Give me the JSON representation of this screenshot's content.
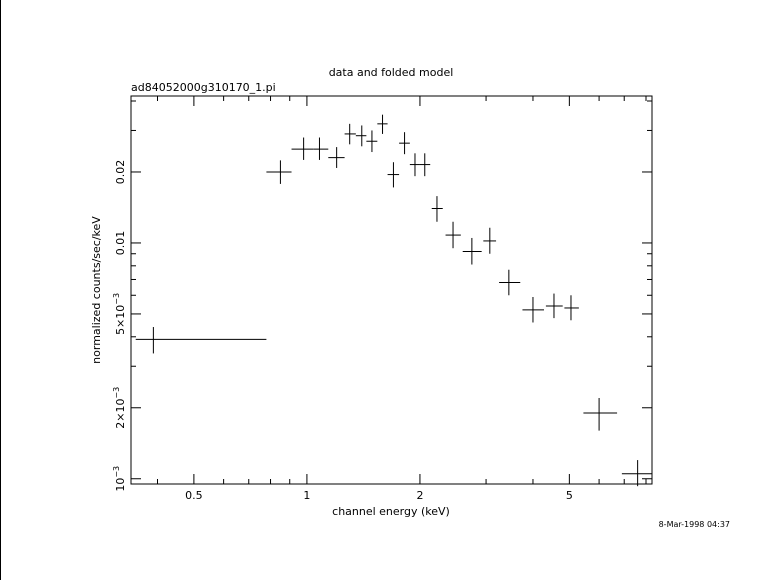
{
  "chart_data": {
    "type": "scatter",
    "title": "data and folded model",
    "subtitle": "ad84052000g310170_1.pi",
    "xlabel": "channel energy (keV)",
    "ylabel": "normalized counts/sec/keV",
    "timestamp": "8-Mar-1998 04:37",
    "x_scale": "log",
    "y_scale": "log",
    "xlim": [
      0.34,
      8.3
    ],
    "ylim": [
      0.00095,
      0.042
    ],
    "x_ticks": [
      {
        "value": 0.5,
        "label": "0.5"
      },
      {
        "value": 1,
        "label": "1"
      },
      {
        "value": 2,
        "label": "2"
      },
      {
        "value": 5,
        "label": "5"
      }
    ],
    "y_ticks": [
      {
        "value": 0.001,
        "label_base": "10",
        "label_sup": "−3"
      },
      {
        "value": 0.002,
        "label_base": "2×10",
        "label_sup": "−3"
      },
      {
        "value": 0.005,
        "label_base": "5×10",
        "label_sup": "−3"
      },
      {
        "value": 0.01,
        "label_base": "0.01",
        "label_sup": ""
      },
      {
        "value": 0.02,
        "label_base": "0.02",
        "label_sup": ""
      }
    ],
    "points": [
      {
        "x": 0.39,
        "xlo": 0.35,
        "xhi": 0.78,
        "y": 0.0039,
        "ylo": 0.0034,
        "yhi": 0.0044
      },
      {
        "x": 0.85,
        "xlo": 0.78,
        "xhi": 0.91,
        "y": 0.02,
        "ylo": 0.0178,
        "yhi": 0.0224
      },
      {
        "x": 0.98,
        "xlo": 0.91,
        "xhi": 1.04,
        "y": 0.025,
        "ylo": 0.0225,
        "yhi": 0.028
      },
      {
        "x": 1.08,
        "xlo": 1.04,
        "xhi": 1.14,
        "y": 0.025,
        "ylo": 0.0225,
        "yhi": 0.028
      },
      {
        "x": 1.2,
        "xlo": 1.14,
        "xhi": 1.26,
        "y": 0.023,
        "ylo": 0.0208,
        "yhi": 0.0255
      },
      {
        "x": 1.3,
        "xlo": 1.26,
        "xhi": 1.35,
        "y": 0.029,
        "ylo": 0.0262,
        "yhi": 0.032
      },
      {
        "x": 1.4,
        "xlo": 1.35,
        "xhi": 1.44,
        "y": 0.0285,
        "ylo": 0.0257,
        "yhi": 0.0315
      },
      {
        "x": 1.49,
        "xlo": 1.44,
        "xhi": 1.54,
        "y": 0.027,
        "ylo": 0.0243,
        "yhi": 0.03
      },
      {
        "x": 1.59,
        "xlo": 1.54,
        "xhi": 1.64,
        "y": 0.032,
        "ylo": 0.029,
        "yhi": 0.035
      },
      {
        "x": 1.7,
        "xlo": 1.64,
        "xhi": 1.76,
        "y": 0.0195,
        "ylo": 0.0172,
        "yhi": 0.022
      },
      {
        "x": 1.82,
        "xlo": 1.76,
        "xhi": 1.88,
        "y": 0.0265,
        "ylo": 0.0238,
        "yhi": 0.0295
      },
      {
        "x": 1.94,
        "xlo": 1.88,
        "xhi": 2.0,
        "y": 0.0215,
        "ylo": 0.0192,
        "yhi": 0.024
      },
      {
        "x": 2.06,
        "xlo": 2.0,
        "xhi": 2.13,
        "y": 0.0215,
        "ylo": 0.0192,
        "yhi": 0.024
      },
      {
        "x": 2.22,
        "xlo": 2.15,
        "xhi": 2.3,
        "y": 0.014,
        "ylo": 0.0123,
        "yhi": 0.0158
      },
      {
        "x": 2.45,
        "xlo": 2.34,
        "xhi": 2.57,
        "y": 0.0108,
        "ylo": 0.0095,
        "yhi": 0.0123
      },
      {
        "x": 2.75,
        "xlo": 2.6,
        "xhi": 2.92,
        "y": 0.0092,
        "ylo": 0.0081,
        "yhi": 0.0105
      },
      {
        "x": 3.07,
        "xlo": 2.95,
        "xhi": 3.19,
        "y": 0.0102,
        "ylo": 0.009,
        "yhi": 0.0116
      },
      {
        "x": 3.45,
        "xlo": 3.25,
        "xhi": 3.7,
        "y": 0.0068,
        "ylo": 0.006,
        "yhi": 0.0077
      },
      {
        "x": 4.0,
        "xlo": 3.75,
        "xhi": 4.28,
        "y": 0.0052,
        "ylo": 0.0046,
        "yhi": 0.0059
      },
      {
        "x": 4.55,
        "xlo": 4.33,
        "xhi": 4.8,
        "y": 0.0054,
        "ylo": 0.0048,
        "yhi": 0.0061
      },
      {
        "x": 5.05,
        "xlo": 4.85,
        "xhi": 5.3,
        "y": 0.0053,
        "ylo": 0.0047,
        "yhi": 0.006
      },
      {
        "x": 6.0,
        "xlo": 5.45,
        "xhi": 6.7,
        "y": 0.0019,
        "ylo": 0.0016,
        "yhi": 0.0022
      },
      {
        "x": 7.6,
        "xlo": 6.9,
        "xhi": 8.3,
        "y": 0.00105,
        "ylo": 0.00093,
        "yhi": 0.0012
      }
    ]
  }
}
